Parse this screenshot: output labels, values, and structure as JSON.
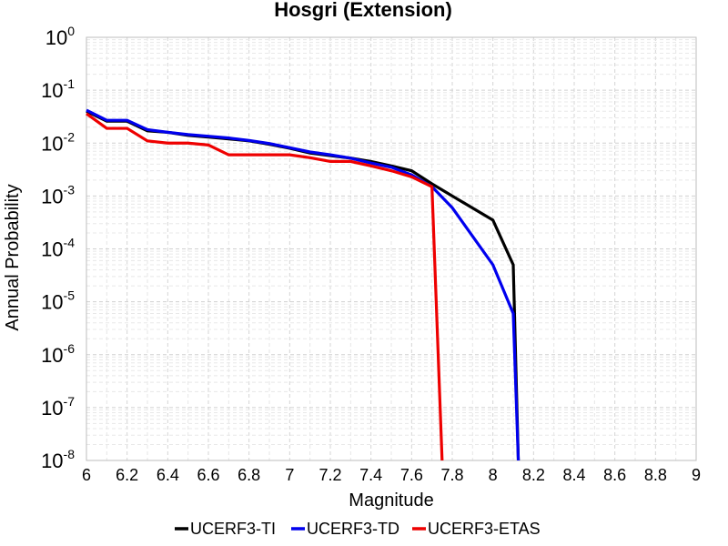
{
  "chart_data": {
    "type": "line",
    "title": "Hosgri (Extension)",
    "xlabel": "Magnitude",
    "ylabel": "Annual Probability",
    "xlim": [
      6,
      9
    ],
    "ylim": [
      1e-08,
      1
    ],
    "yscale": "log",
    "grid": true,
    "legend_position": "bottom",
    "x_ticks": [
      "6",
      "6.2",
      "6.4",
      "6.6",
      "6.8",
      "7",
      "7.2",
      "7.4",
      "7.6",
      "7.8",
      "8",
      "8.2",
      "8.4",
      "8.6",
      "8.8",
      "9"
    ],
    "y_ticks": [
      {
        "base": "10",
        "exp": "0"
      },
      {
        "base": "10",
        "exp": "-1"
      },
      {
        "base": "10",
        "exp": "-2"
      },
      {
        "base": "10",
        "exp": "-3"
      },
      {
        "base": "10",
        "exp": "-4"
      },
      {
        "base": "10",
        "exp": "-5"
      },
      {
        "base": "10",
        "exp": "-6"
      },
      {
        "base": "10",
        "exp": "-7"
      },
      {
        "base": "10",
        "exp": "-8"
      }
    ],
    "series": [
      {
        "name": "UCERF3-TI",
        "color": "#000000",
        "points": [
          [
            6.0,
            0.04
          ],
          [
            6.1,
            0.026
          ],
          [
            6.2,
            0.026
          ],
          [
            6.3,
            0.017
          ],
          [
            6.4,
            0.016
          ],
          [
            6.5,
            0.014
          ],
          [
            6.6,
            0.013
          ],
          [
            6.7,
            0.012
          ],
          [
            6.8,
            0.011
          ],
          [
            6.9,
            0.0095
          ],
          [
            7.0,
            0.008
          ],
          [
            7.1,
            0.0065
          ],
          [
            7.2,
            0.0058
          ],
          [
            7.3,
            0.0052
          ],
          [
            7.4,
            0.0045
          ],
          [
            7.5,
            0.0037
          ],
          [
            7.6,
            0.003
          ],
          [
            7.7,
            0.0017
          ],
          [
            7.8,
            0.001
          ],
          [
            8.0,
            0.00035
          ],
          [
            8.1,
            5e-05
          ],
          [
            8.125,
            1e-08
          ]
        ]
      },
      {
        "name": "UCERF3-TD",
        "color": "#0000ee",
        "points": [
          [
            6.0,
            0.042
          ],
          [
            6.1,
            0.027
          ],
          [
            6.2,
            0.027
          ],
          [
            6.3,
            0.018
          ],
          [
            6.4,
            0.016
          ],
          [
            6.5,
            0.0145
          ],
          [
            6.6,
            0.0135
          ],
          [
            6.7,
            0.0125
          ],
          [
            6.8,
            0.0112
          ],
          [
            6.9,
            0.0098
          ],
          [
            7.0,
            0.0082
          ],
          [
            7.1,
            0.0068
          ],
          [
            7.2,
            0.006
          ],
          [
            7.3,
            0.0052
          ],
          [
            7.4,
            0.0042
          ],
          [
            7.5,
            0.0035
          ],
          [
            7.6,
            0.0025
          ],
          [
            7.7,
            0.0015
          ],
          [
            7.8,
            0.0006
          ],
          [
            8.0,
            5e-05
          ],
          [
            8.1,
            6e-06
          ],
          [
            8.125,
            1e-08
          ]
        ]
      },
      {
        "name": "UCERF3-ETAS",
        "color": "#ee0000",
        "points": [
          [
            6.0,
            0.036
          ],
          [
            6.1,
            0.019
          ],
          [
            6.2,
            0.019
          ],
          [
            6.3,
            0.011
          ],
          [
            6.4,
            0.01
          ],
          [
            6.5,
            0.01
          ],
          [
            6.6,
            0.0092
          ],
          [
            6.7,
            0.006
          ],
          [
            6.8,
            0.006
          ],
          [
            6.9,
            0.006
          ],
          [
            7.0,
            0.006
          ],
          [
            7.1,
            0.0053
          ],
          [
            7.2,
            0.0045
          ],
          [
            7.3,
            0.0045
          ],
          [
            7.4,
            0.0037
          ],
          [
            7.5,
            0.003
          ],
          [
            7.6,
            0.0023
          ],
          [
            7.7,
            0.0015
          ],
          [
            7.75,
            1e-08
          ]
        ]
      }
    ]
  }
}
